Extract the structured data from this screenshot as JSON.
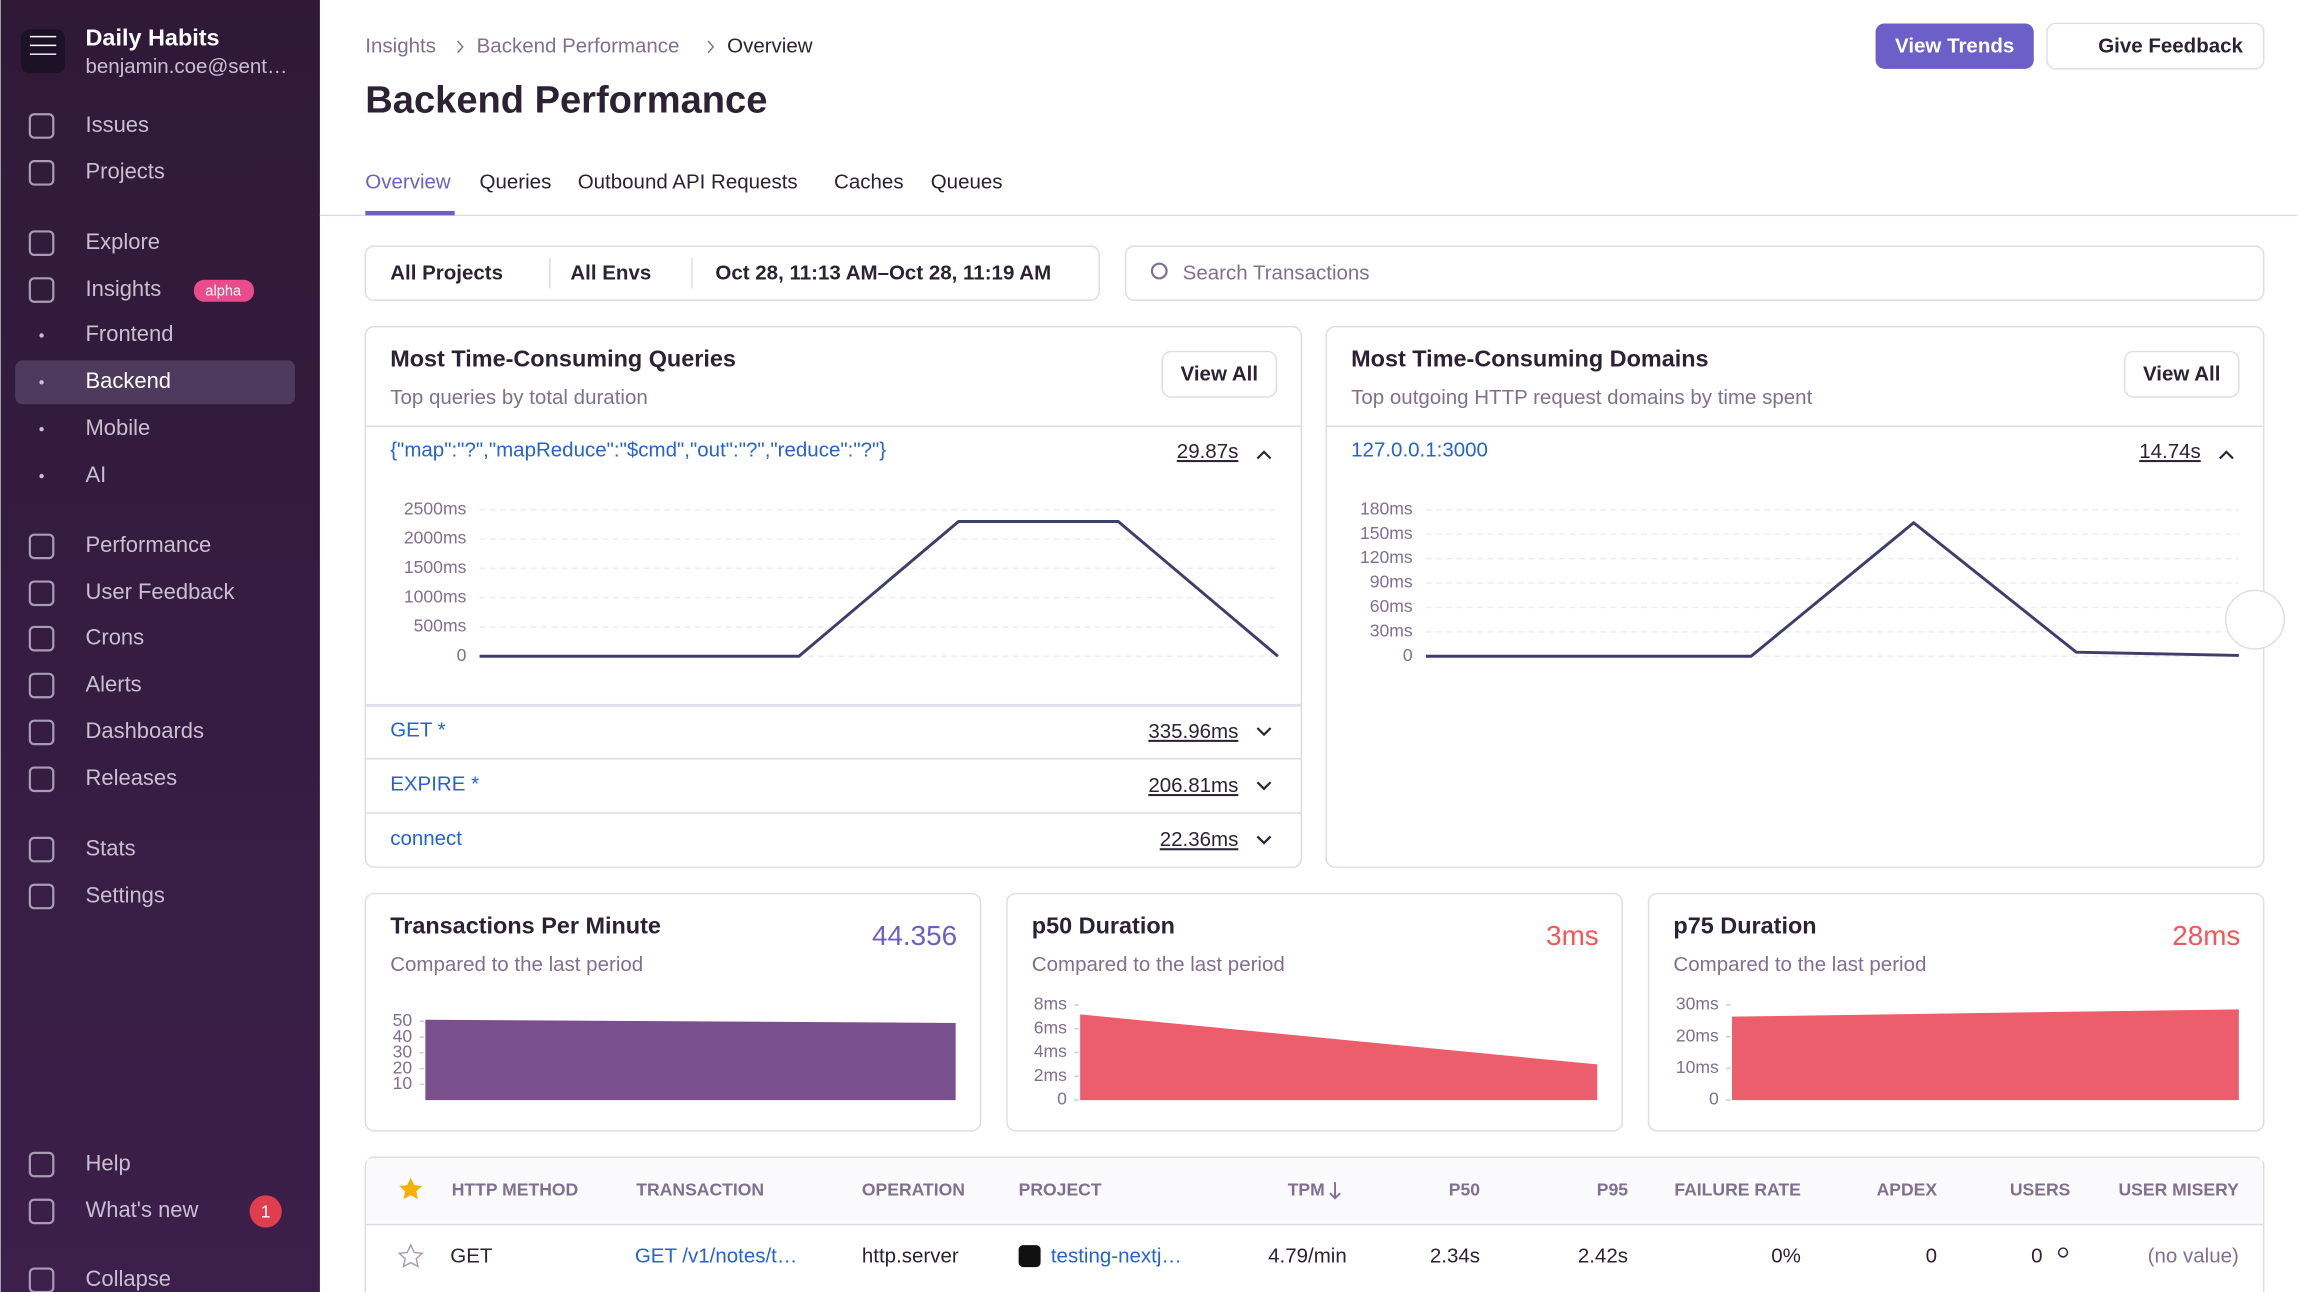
{
  "sidebar": {
    "org": "Daily Habits",
    "email": "benjamin.coe@sent…",
    "nav": [
      "Issues",
      "Projects",
      "Explore",
      "Insights",
      "Frontend",
      "Backend",
      "Mobile",
      "AI",
      "Performance",
      "User Feedback",
      "Crons",
      "Alerts",
      "Dashboards",
      "Releases",
      "Stats",
      "Settings",
      "Help",
      "What's new",
      "Collapse"
    ],
    "insights_badge": "alpha",
    "whats_new_count": 1
  },
  "header": {
    "breadcrumbs": [
      "Insights",
      "Backend Performance",
      "Overview"
    ],
    "title": "Backend Performance",
    "buttons": [
      "View Trends",
      "Give Feedback"
    ],
    "tabs": [
      "Overview",
      "Queries",
      "Outbound API Requests",
      "Caches",
      "Queues"
    ]
  },
  "filters": {
    "projects": "All Projects",
    "envs": "All Envs",
    "date": "Oct 28, 11:13 AM–Oct 28, 11:19 AM",
    "search": "Search Transactions"
  },
  "queries_panel": {
    "title": "Most Time-Consuming Queries",
    "subtitle": "Top queries by total duration",
    "view_all": "View All",
    "rows": [
      {
        "label": "{\"map\":\"?\",\"mapReduce\":\"$cmd\",\"out\":\"?\",\"reduce\":\"?\"}",
        "value": "29.87s"
      },
      {
        "label": "GET *",
        "value": "335.96ms"
      },
      {
        "label": "EXPIRE *",
        "value": "206.81ms"
      },
      {
        "label": "connect",
        "value": "22.36ms"
      }
    ],
    "chart": {
      "type": "line",
      "color": "#3f3d6b",
      "values": [
        0,
        0,
        0,
        2300,
        2300,
        0
      ],
      "ylim": [
        0,
        2500
      ],
      "yticks": [
        0,
        {
          "value": 500,
          "label": "500ms"
        },
        {
          "value": 1000,
          "label": "1000ms"
        },
        {
          "value": 1500,
          "label": "1500ms"
        },
        {
          "value": 2000,
          "label": "2000ms"
        },
        {
          "value": 2500,
          "label": "2500ms"
        }
      ]
    }
  },
  "domains_panel": {
    "title": "Most Time-Consuming Domains",
    "subtitle": "Top outgoing HTTP request domains by time spent",
    "view_all": "View All",
    "rows": [
      {
        "label": "127.0.0.1:3000",
        "value": "14.74s"
      }
    ],
    "chart": {
      "type": "line",
      "color": "#3f3d6b",
      "values": [
        0,
        0,
        0,
        164,
        5,
        1
      ],
      "ylim": [
        0,
        180
      ],
      "yticks": [
        0,
        {
          "value": 30,
          "label": "30ms"
        },
        {
          "value": 60,
          "label": "60ms"
        },
        {
          "value": 90,
          "label": "90ms"
        },
        {
          "value": 120,
          "label": "120ms"
        },
        {
          "value": 150,
          "label": "150ms"
        },
        {
          "value": 180,
          "label": "180ms"
        }
      ]
    }
  },
  "metric_panels": [
    {
      "title": "Transactions Per Minute",
      "subtitle": "Compared to the last period",
      "value": "44.356",
      "chart": {
        "type": "area",
        "color": "#7a4f8e",
        "values": [
          51,
          49
        ],
        "ylim": [
          0,
          52
        ],
        "yticks": [
          10,
          20,
          30,
          40,
          50
        ]
      }
    },
    {
      "title": "p50 Duration",
      "subtitle": "Compared to the last period",
      "value": "3ms",
      "chart": {
        "type": "area",
        "color": "#ec5e6b",
        "values": [
          7.2,
          3.0
        ],
        "ylim": [
          0,
          8
        ],
        "yticks": [
          0,
          {
            "value": 2,
            "label": "2ms"
          },
          {
            "value": 4,
            "label": "4ms"
          },
          {
            "value": 6,
            "label": "6ms"
          },
          {
            "value": 8,
            "label": "8ms"
          }
        ]
      }
    },
    {
      "title": "p75 Duration",
      "subtitle": "Compared to the last period",
      "value": "28ms",
      "chart": {
        "type": "area",
        "color": "#ec5e6b",
        "values": [
          26.3,
          28.6
        ],
        "ylim": [
          0,
          30
        ],
        "yticks": [
          0,
          {
            "value": 10,
            "label": "10ms"
          },
          {
            "value": 20,
            "label": "20ms"
          },
          {
            "value": 30,
            "label": "30ms"
          }
        ]
      }
    }
  ],
  "table": {
    "headers": [
      "HTTP METHOD",
      "TRANSACTION",
      "OPERATION",
      "PROJECT",
      "TPM",
      "P50",
      "P95",
      "FAILURE RATE",
      "APDEX",
      "USERS",
      "USER MISERY"
    ],
    "rows": [
      [
        "GET",
        "GET /v1/notes/t…",
        "http.server",
        "testing-nextj…",
        "4.79/min",
        "2.34s",
        "2.42s",
        "0%",
        "0",
        "0",
        "(no value)"
      ]
    ]
  }
}
